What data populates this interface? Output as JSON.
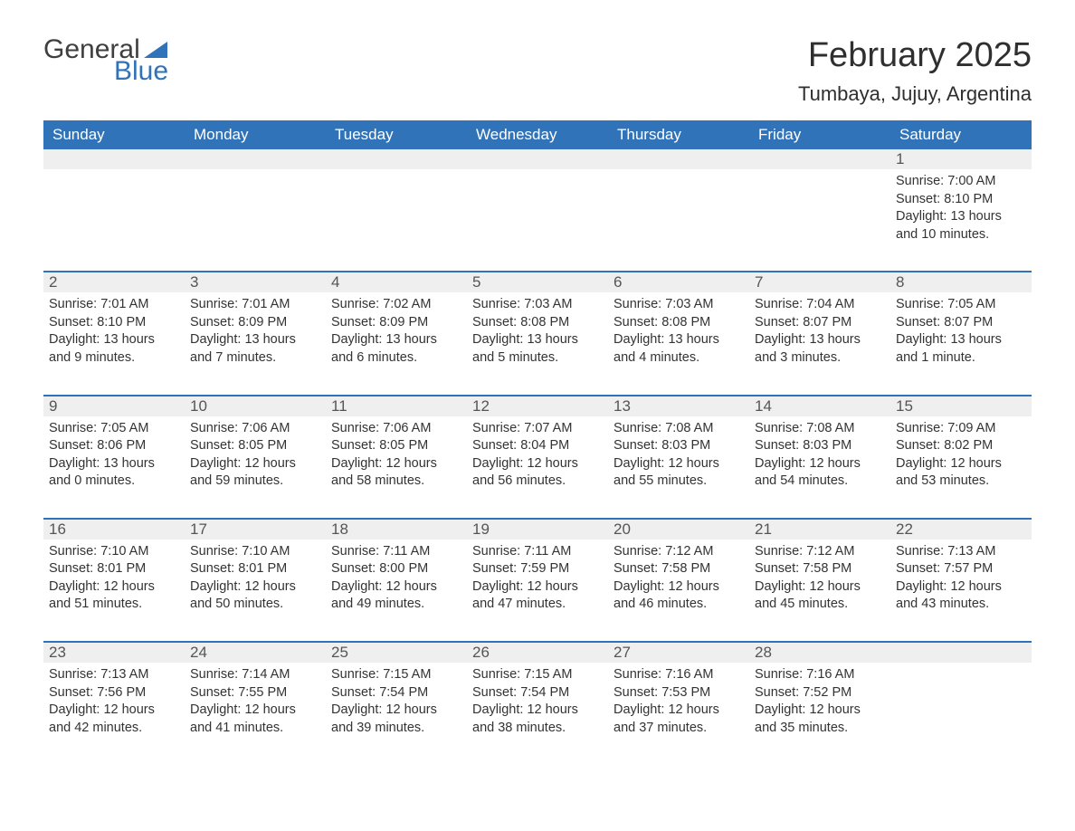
{
  "logo": {
    "text1": "General",
    "text2": "Blue",
    "color1": "#3f3f3f",
    "color2": "#3173b8"
  },
  "title": "February 2025",
  "location": "Tumbaya, Jujuy, Argentina",
  "colors": {
    "header_bg": "#3173b8",
    "header_text": "#ffffff",
    "daynum_bg": "#efefef",
    "border": "#3173b8",
    "body_text": "#333333",
    "background": "#ffffff"
  },
  "typography": {
    "title_fontsize": 38,
    "location_fontsize": 22,
    "header_fontsize": 17,
    "cell_fontsize": 14.5
  },
  "day_names": [
    "Sunday",
    "Monday",
    "Tuesday",
    "Wednesday",
    "Thursday",
    "Friday",
    "Saturday"
  ],
  "weeks": [
    [
      {
        "day": "",
        "sunrise": "",
        "sunset": "",
        "daylight1": "",
        "daylight2": ""
      },
      {
        "day": "",
        "sunrise": "",
        "sunset": "",
        "daylight1": "",
        "daylight2": ""
      },
      {
        "day": "",
        "sunrise": "",
        "sunset": "",
        "daylight1": "",
        "daylight2": ""
      },
      {
        "day": "",
        "sunrise": "",
        "sunset": "",
        "daylight1": "",
        "daylight2": ""
      },
      {
        "day": "",
        "sunrise": "",
        "sunset": "",
        "daylight1": "",
        "daylight2": ""
      },
      {
        "day": "",
        "sunrise": "",
        "sunset": "",
        "daylight1": "",
        "daylight2": ""
      },
      {
        "day": "1",
        "sunrise": "Sunrise: 7:00 AM",
        "sunset": "Sunset: 8:10 PM",
        "daylight1": "Daylight: 13 hours",
        "daylight2": "and 10 minutes."
      }
    ],
    [
      {
        "day": "2",
        "sunrise": "Sunrise: 7:01 AM",
        "sunset": "Sunset: 8:10 PM",
        "daylight1": "Daylight: 13 hours",
        "daylight2": "and 9 minutes."
      },
      {
        "day": "3",
        "sunrise": "Sunrise: 7:01 AM",
        "sunset": "Sunset: 8:09 PM",
        "daylight1": "Daylight: 13 hours",
        "daylight2": "and 7 minutes."
      },
      {
        "day": "4",
        "sunrise": "Sunrise: 7:02 AM",
        "sunset": "Sunset: 8:09 PM",
        "daylight1": "Daylight: 13 hours",
        "daylight2": "and 6 minutes."
      },
      {
        "day": "5",
        "sunrise": "Sunrise: 7:03 AM",
        "sunset": "Sunset: 8:08 PM",
        "daylight1": "Daylight: 13 hours",
        "daylight2": "and 5 minutes."
      },
      {
        "day": "6",
        "sunrise": "Sunrise: 7:03 AM",
        "sunset": "Sunset: 8:08 PM",
        "daylight1": "Daylight: 13 hours",
        "daylight2": "and 4 minutes."
      },
      {
        "day": "7",
        "sunrise": "Sunrise: 7:04 AM",
        "sunset": "Sunset: 8:07 PM",
        "daylight1": "Daylight: 13 hours",
        "daylight2": "and 3 minutes."
      },
      {
        "day": "8",
        "sunrise": "Sunrise: 7:05 AM",
        "sunset": "Sunset: 8:07 PM",
        "daylight1": "Daylight: 13 hours",
        "daylight2": "and 1 minute."
      }
    ],
    [
      {
        "day": "9",
        "sunrise": "Sunrise: 7:05 AM",
        "sunset": "Sunset: 8:06 PM",
        "daylight1": "Daylight: 13 hours",
        "daylight2": "and 0 minutes."
      },
      {
        "day": "10",
        "sunrise": "Sunrise: 7:06 AM",
        "sunset": "Sunset: 8:05 PM",
        "daylight1": "Daylight: 12 hours",
        "daylight2": "and 59 minutes."
      },
      {
        "day": "11",
        "sunrise": "Sunrise: 7:06 AM",
        "sunset": "Sunset: 8:05 PM",
        "daylight1": "Daylight: 12 hours",
        "daylight2": "and 58 minutes."
      },
      {
        "day": "12",
        "sunrise": "Sunrise: 7:07 AM",
        "sunset": "Sunset: 8:04 PM",
        "daylight1": "Daylight: 12 hours",
        "daylight2": "and 56 minutes."
      },
      {
        "day": "13",
        "sunrise": "Sunrise: 7:08 AM",
        "sunset": "Sunset: 8:03 PM",
        "daylight1": "Daylight: 12 hours",
        "daylight2": "and 55 minutes."
      },
      {
        "day": "14",
        "sunrise": "Sunrise: 7:08 AM",
        "sunset": "Sunset: 8:03 PM",
        "daylight1": "Daylight: 12 hours",
        "daylight2": "and 54 minutes."
      },
      {
        "day": "15",
        "sunrise": "Sunrise: 7:09 AM",
        "sunset": "Sunset: 8:02 PM",
        "daylight1": "Daylight: 12 hours",
        "daylight2": "and 53 minutes."
      }
    ],
    [
      {
        "day": "16",
        "sunrise": "Sunrise: 7:10 AM",
        "sunset": "Sunset: 8:01 PM",
        "daylight1": "Daylight: 12 hours",
        "daylight2": "and 51 minutes."
      },
      {
        "day": "17",
        "sunrise": "Sunrise: 7:10 AM",
        "sunset": "Sunset: 8:01 PM",
        "daylight1": "Daylight: 12 hours",
        "daylight2": "and 50 minutes."
      },
      {
        "day": "18",
        "sunrise": "Sunrise: 7:11 AM",
        "sunset": "Sunset: 8:00 PM",
        "daylight1": "Daylight: 12 hours",
        "daylight2": "and 49 minutes."
      },
      {
        "day": "19",
        "sunrise": "Sunrise: 7:11 AM",
        "sunset": "Sunset: 7:59 PM",
        "daylight1": "Daylight: 12 hours",
        "daylight2": "and 47 minutes."
      },
      {
        "day": "20",
        "sunrise": "Sunrise: 7:12 AM",
        "sunset": "Sunset: 7:58 PM",
        "daylight1": "Daylight: 12 hours",
        "daylight2": "and 46 minutes."
      },
      {
        "day": "21",
        "sunrise": "Sunrise: 7:12 AM",
        "sunset": "Sunset: 7:58 PM",
        "daylight1": "Daylight: 12 hours",
        "daylight2": "and 45 minutes."
      },
      {
        "day": "22",
        "sunrise": "Sunrise: 7:13 AM",
        "sunset": "Sunset: 7:57 PM",
        "daylight1": "Daylight: 12 hours",
        "daylight2": "and 43 minutes."
      }
    ],
    [
      {
        "day": "23",
        "sunrise": "Sunrise: 7:13 AM",
        "sunset": "Sunset: 7:56 PM",
        "daylight1": "Daylight: 12 hours",
        "daylight2": "and 42 minutes."
      },
      {
        "day": "24",
        "sunrise": "Sunrise: 7:14 AM",
        "sunset": "Sunset: 7:55 PM",
        "daylight1": "Daylight: 12 hours",
        "daylight2": "and 41 minutes."
      },
      {
        "day": "25",
        "sunrise": "Sunrise: 7:15 AM",
        "sunset": "Sunset: 7:54 PM",
        "daylight1": "Daylight: 12 hours",
        "daylight2": "and 39 minutes."
      },
      {
        "day": "26",
        "sunrise": "Sunrise: 7:15 AM",
        "sunset": "Sunset: 7:54 PM",
        "daylight1": "Daylight: 12 hours",
        "daylight2": "and 38 minutes."
      },
      {
        "day": "27",
        "sunrise": "Sunrise: 7:16 AM",
        "sunset": "Sunset: 7:53 PM",
        "daylight1": "Daylight: 12 hours",
        "daylight2": "and 37 minutes."
      },
      {
        "day": "28",
        "sunrise": "Sunrise: 7:16 AM",
        "sunset": "Sunset: 7:52 PM",
        "daylight1": "Daylight: 12 hours",
        "daylight2": "and 35 minutes."
      },
      {
        "day": "",
        "sunrise": "",
        "sunset": "",
        "daylight1": "",
        "daylight2": ""
      }
    ]
  ]
}
